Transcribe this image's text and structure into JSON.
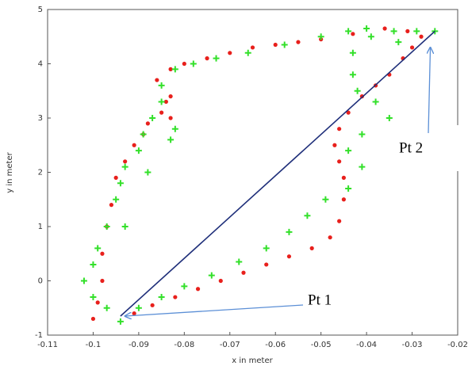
{
  "chart_data": {
    "type": "scatter",
    "x_label": "x in meter",
    "y_label": "y in meter",
    "xlim": [
      -0.11,
      -0.02
    ],
    "xticks": [
      -0.11,
      -0.1,
      -0.09,
      -0.08,
      -0.07,
      -0.06,
      -0.05,
      -0.04,
      -0.03,
      -0.02
    ],
    "ylim": [
      -1,
      5
    ],
    "yticks": [
      -1,
      0,
      1,
      2,
      3,
      4,
      5
    ],
    "series": [
      {
        "color": "#e8201c",
        "marker": "dot",
        "x": [
          -0.1,
          -0.099,
          -0.098,
          -0.098,
          -0.097,
          -0.096,
          -0.095,
          -0.093,
          -0.091,
          -0.089,
          -0.088,
          -0.085,
          -0.083,
          -0.083,
          -0.084,
          -0.086,
          -0.083,
          -0.08,
          -0.075,
          -0.07,
          -0.065,
          -0.06,
          -0.055,
          -0.05,
          -0.043,
          -0.036,
          -0.031,
          -0.028,
          -0.03,
          -0.032,
          -0.035,
          -0.038,
          -0.041,
          -0.044,
          -0.046,
          -0.047,
          -0.046,
          -0.045,
          -0.045,
          -0.046,
          -0.048,
          -0.052,
          -0.057,
          -0.062,
          -0.067,
          -0.072,
          -0.077,
          -0.082,
          -0.087,
          -0.091
        ],
        "values": [
          -0.7,
          -0.4,
          0,
          0.5,
          1.0,
          1.4,
          1.9,
          2.2,
          2.5,
          2.7,
          2.9,
          3.1,
          3.4,
          3.0,
          3.3,
          3.7,
          3.9,
          4.0,
          4.1,
          4.2,
          4.3,
          4.35,
          4.4,
          4.45,
          4.55,
          4.65,
          4.6,
          4.5,
          4.3,
          4.1,
          3.8,
          3.6,
          3.4,
          3.1,
          2.8,
          2.5,
          2.2,
          1.9,
          1.5,
          1.1,
          0.8,
          0.6,
          0.45,
          0.3,
          0.15,
          0.0,
          -0.15,
          -0.3,
          -0.45,
          -0.6
        ]
      },
      {
        "color": "#33e02a",
        "marker": "plus",
        "x": [
          -0.094,
          -0.097,
          -0.1,
          -0.102,
          -0.1,
          -0.099,
          -0.097,
          -0.093,
          -0.095,
          -0.094,
          -0.093,
          -0.088,
          -0.09,
          -0.089,
          -0.087,
          -0.085,
          -0.082,
          -0.083,
          -0.085,
          -0.082,
          -0.078,
          -0.073,
          -0.066,
          -0.058,
          -0.05,
          -0.044,
          -0.04,
          -0.034,
          -0.029,
          -0.025,
          -0.033,
          -0.039,
          -0.043,
          -0.043,
          -0.042,
          -0.038,
          -0.035,
          -0.041,
          -0.044,
          -0.041,
          -0.044,
          -0.049,
          -0.053,
          -0.057,
          -0.062,
          -0.068,
          -0.074,
          -0.08,
          -0.085,
          -0.09
        ],
        "values": [
          -0.75,
          -0.5,
          -0.3,
          0,
          0.3,
          0.6,
          1.0,
          1.0,
          1.5,
          1.8,
          2.1,
          2.0,
          2.4,
          2.7,
          3.0,
          3.3,
          2.8,
          2.6,
          3.6,
          3.9,
          4.0,
          4.1,
          4.2,
          4.35,
          4.5,
          4.6,
          4.65,
          4.6,
          4.6,
          4.6,
          4.4,
          4.5,
          4.2,
          3.8,
          3.5,
          3.3,
          3.0,
          2.7,
          2.4,
          2.1,
          1.7,
          1.5,
          1.2,
          0.9,
          0.6,
          0.35,
          0.1,
          -0.1,
          -0.3,
          -0.5
        ]
      }
    ],
    "lines": [
      {
        "color": "#1f2f7a",
        "x": [
          -0.094,
          -0.025
        ],
        "values": [
          -0.65,
          4.6
        ]
      }
    ],
    "annotations": [
      {
        "text": "Pt 1",
        "x": -0.093,
        "y": -0.65,
        "color": "#5b8fd6"
      },
      {
        "text": "Pt 2",
        "x": -0.026,
        "y": 4.3,
        "color": "#5b8fd6"
      }
    ]
  }
}
